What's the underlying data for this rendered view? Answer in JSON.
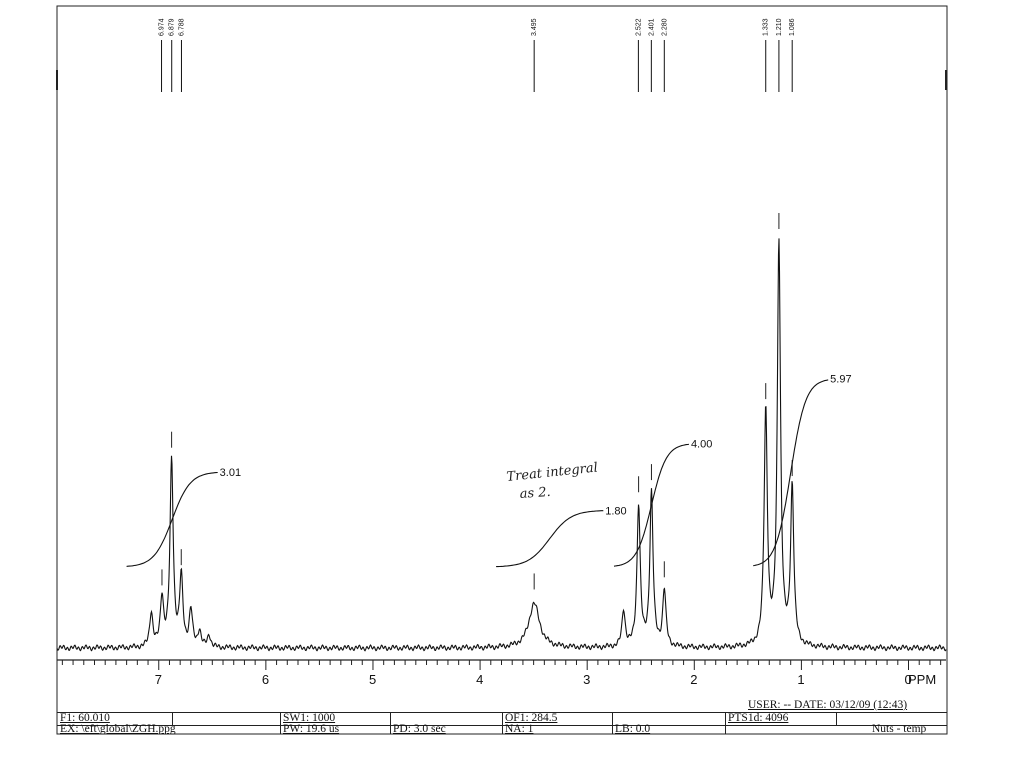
{
  "chart_data": {
    "type": "line",
    "xlabel": "PPM",
    "xlim": [
      7.95,
      -0.35
    ],
    "x_ticks": [
      7,
      6,
      5,
      4,
      3,
      2,
      1,
      0
    ],
    "x_tick_labels": [
      "7",
      "6",
      "5",
      "4",
      "3",
      "2",
      "1",
      "0"
    ],
    "x_unit_label": "PPM",
    "peak_labels": [
      "6.974",
      "6.879",
      "6.788",
      "3.495",
      "2.522",
      "2.401",
      "2.280",
      "1.333",
      "1.210",
      "1.086"
    ],
    "peaks": [
      {
        "ppm": 7.07,
        "height": 0.085
      },
      {
        "ppm": 6.97,
        "height": 0.12
      },
      {
        "ppm": 6.88,
        "height": 0.46
      },
      {
        "ppm": 6.79,
        "height": 0.17
      },
      {
        "ppm": 6.7,
        "height": 0.09
      },
      {
        "ppm": 6.62,
        "height": 0.04
      },
      {
        "ppm": 6.53,
        "height": 0.03
      },
      {
        "ppm": 3.495,
        "height": 0.11
      },
      {
        "ppm": 2.66,
        "height": 0.09
      },
      {
        "ppm": 2.52,
        "height": 0.35
      },
      {
        "ppm": 2.4,
        "height": 0.38
      },
      {
        "ppm": 2.28,
        "height": 0.14
      },
      {
        "ppm": 1.333,
        "height": 0.58
      },
      {
        "ppm": 1.21,
        "height": 1.0
      },
      {
        "ppm": 1.086,
        "height": 0.39
      }
    ],
    "integrals": [
      {
        "from": 7.3,
        "to": 6.45,
        "value": "3.01",
        "start": 0.2,
        "rise": 0.235
      },
      {
        "from": 3.85,
        "to": 2.85,
        "value": "1.80",
        "start": 0.2,
        "rise": 0.14
      },
      {
        "from": 2.75,
        "to": 2.05,
        "value": "4.00",
        "start": 0.2,
        "rise": 0.305
      },
      {
        "from": 1.45,
        "to": 0.75,
        "value": "5.97",
        "start": 0.2,
        "rise": 0.465
      }
    ],
    "annotation": [
      "Treat integral",
      "as 2."
    ]
  },
  "footer": {
    "user_date": "USER:  -- DATE: 03/12/09  (12:43)",
    "f1": "F1: 60.010",
    "sw1": "SW1: 1000",
    "of1": "OF1: 284.5",
    "pts1d": "PTS1d: 4096",
    "ex": "EX: \\eft\\global\\ZGH.ppg",
    "pw": "PW: 19.6 us",
    "pd": "PD: 3.0   sec",
    "na": "NA: 1",
    "lb": "LB: 0.0",
    "nuts": "Nuts - temp"
  }
}
